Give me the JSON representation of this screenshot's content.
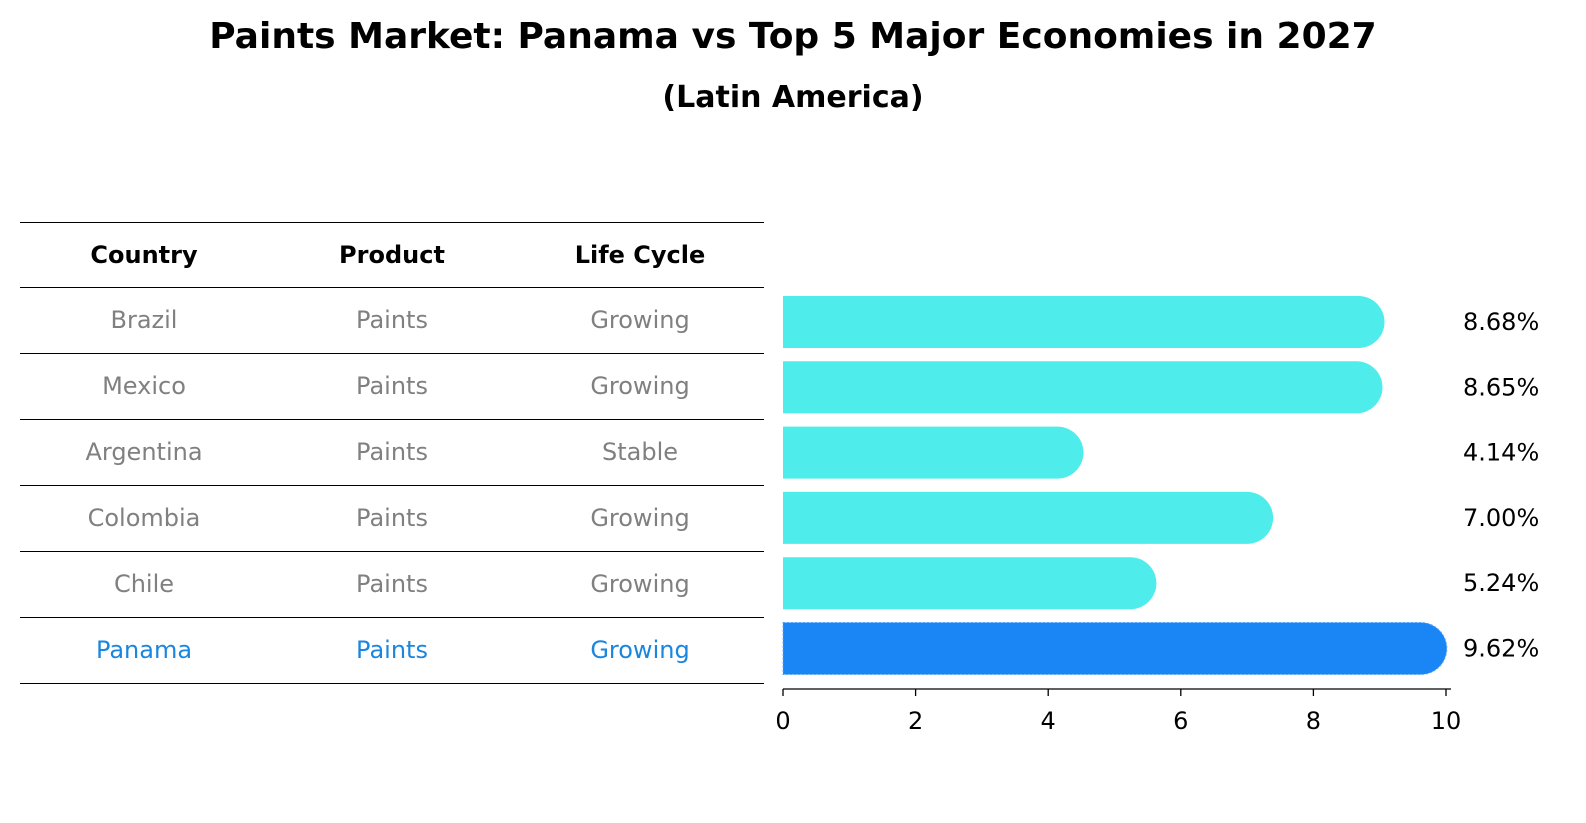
{
  "title": "Paints Market: Panama vs Top 5 Major Economies in 2027",
  "subtitle": "(Latin America)",
  "table": {
    "headers": [
      "Country",
      "Product",
      "Life Cycle"
    ],
    "rows": [
      [
        "Brazil",
        "Paints",
        "Growing"
      ],
      [
        "Mexico",
        "Paints",
        "Growing"
      ],
      [
        "Argentina",
        "Paints",
        "Stable"
      ],
      [
        "Colombia",
        "Paints",
        "Growing"
      ],
      [
        "Chile",
        "Paints",
        "Growing"
      ],
      [
        "Panama",
        "Paints",
        "Growing"
      ]
    ],
    "highlight_row": "Panama"
  },
  "colors": {
    "bar": "#4eecea",
    "highlight": "#1a86f5",
    "highlight_text": "#1a86e0",
    "row_text": "#808080"
  },
  "chart_data": {
    "type": "bar",
    "orientation": "horizontal",
    "categories": [
      "Brazil",
      "Mexico",
      "Argentina",
      "Colombia",
      "Chile",
      "Panama"
    ],
    "values": [
      8.68,
      8.65,
      4.14,
      7.0,
      5.24,
      9.62
    ],
    "value_labels": [
      "8.68%",
      "8.65%",
      "4.14%",
      "7.00%",
      "5.24%",
      "9.62%"
    ],
    "highlight": "Panama",
    "xlim": [
      0,
      10
    ],
    "xticks": [
      "0",
      "2",
      "4",
      "6",
      "8",
      "10"
    ],
    "grid": false
  }
}
